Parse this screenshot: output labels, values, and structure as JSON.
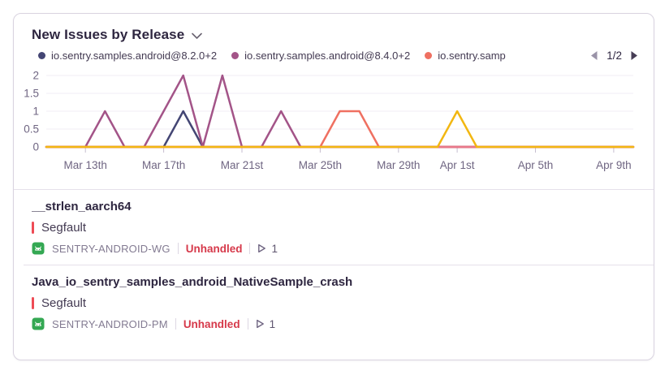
{
  "widget": {
    "title": "New Issues by Release",
    "pagination": {
      "label": "1/2"
    }
  },
  "legend": {
    "items": [
      {
        "label": "io.sentry.samples.android@8.2.0+2",
        "color": "#444674"
      },
      {
        "label": "io.sentry.samples.android@8.4.0+2",
        "color": "#a35488"
      },
      {
        "label": "io.sentry.samp",
        "color": "#ef7061"
      }
    ]
  },
  "chart_data": {
    "type": "line",
    "title": "New Issues by Release",
    "x_unit": "day",
    "x_start": "Mar 11",
    "x_end": "Apr 10",
    "num_points": 31,
    "x_tick_labels": [
      "Mar 13th",
      "Mar 17th",
      "Mar 21st",
      "Mar 25th",
      "Mar 29th",
      "Apr 1st",
      "Apr 5th",
      "Apr 9th"
    ],
    "x_tick_indices": [
      2,
      6,
      10,
      14,
      18,
      21,
      25,
      29
    ],
    "y_ticks": [
      0,
      0.5,
      1,
      1.5,
      2
    ],
    "y_tick_labels": [
      "0",
      "0.5",
      "1",
      "1.5",
      "2"
    ],
    "ylim": [
      0,
      2
    ],
    "grid": "horizontal",
    "legend_position": "top",
    "series": [
      {
        "name": "io.sentry.samples.android@8.2.0+2",
        "color": "#444674",
        "values": [
          0,
          0,
          0,
          0,
          0,
          0,
          0,
          1,
          0,
          0,
          0,
          0,
          0,
          0,
          0,
          0,
          0,
          0,
          0,
          0,
          0,
          0,
          0,
          0,
          0,
          0,
          0,
          0,
          0,
          0,
          0
        ]
      },
      {
        "name": "io.sentry.samples.android@8.4.0+2",
        "color": "#a35488",
        "values": [
          0,
          0,
          0,
          1,
          0,
          0,
          1,
          2,
          0,
          2,
          0,
          0,
          1,
          0,
          0,
          0,
          0,
          0,
          0,
          0,
          0,
          0,
          0,
          0,
          0,
          0,
          0,
          0,
          0,
          0,
          0
        ]
      },
      {
        "name": "io.sentry.samp",
        "color": "#ef7061",
        "values": [
          0,
          0,
          0,
          0,
          0,
          0,
          0,
          0,
          0,
          0,
          0,
          0,
          0,
          0,
          0,
          1,
          1,
          0,
          0,
          0,
          0,
          0,
          0,
          0,
          0,
          0,
          0,
          0,
          0,
          0,
          0
        ]
      },
      {
        "name": "",
        "color": "#e9788a",
        "values": [
          0,
          0,
          0,
          0,
          0,
          0,
          0,
          0,
          0,
          0,
          0,
          0,
          0,
          0,
          0,
          0,
          0,
          0,
          0,
          0,
          0,
          0,
          0,
          0,
          0,
          0,
          0,
          0,
          0,
          0,
          0
        ]
      },
      {
        "name": "",
        "color": "#f2b712",
        "values": [
          0,
          0,
          0,
          0,
          0,
          0,
          0,
          0,
          0,
          0,
          0,
          0,
          0,
          0,
          0,
          0,
          0,
          0,
          0,
          0,
          0,
          1,
          0,
          0,
          0,
          0,
          0,
          0,
          0,
          0,
          0
        ]
      }
    ]
  },
  "issues": [
    {
      "title": "__strlen_aarch64",
      "error_type": "Segfault",
      "project": "SENTRY-ANDROID-WG",
      "handling": "Unhandled",
      "event_count": "1"
    },
    {
      "title": "Java_io_sentry_samples_android_NativeSample_crash",
      "error_type": "Segfault",
      "project": "SENTRY-ANDROID-PM",
      "handling": "Unhandled",
      "event_count": "1"
    }
  ],
  "colors": {
    "level_error": "#ee4b55",
    "unhandled_text": "#d6394a",
    "android_green": "#34a853",
    "axis_label": "#6f6582",
    "gridline": "#f1edf5"
  }
}
